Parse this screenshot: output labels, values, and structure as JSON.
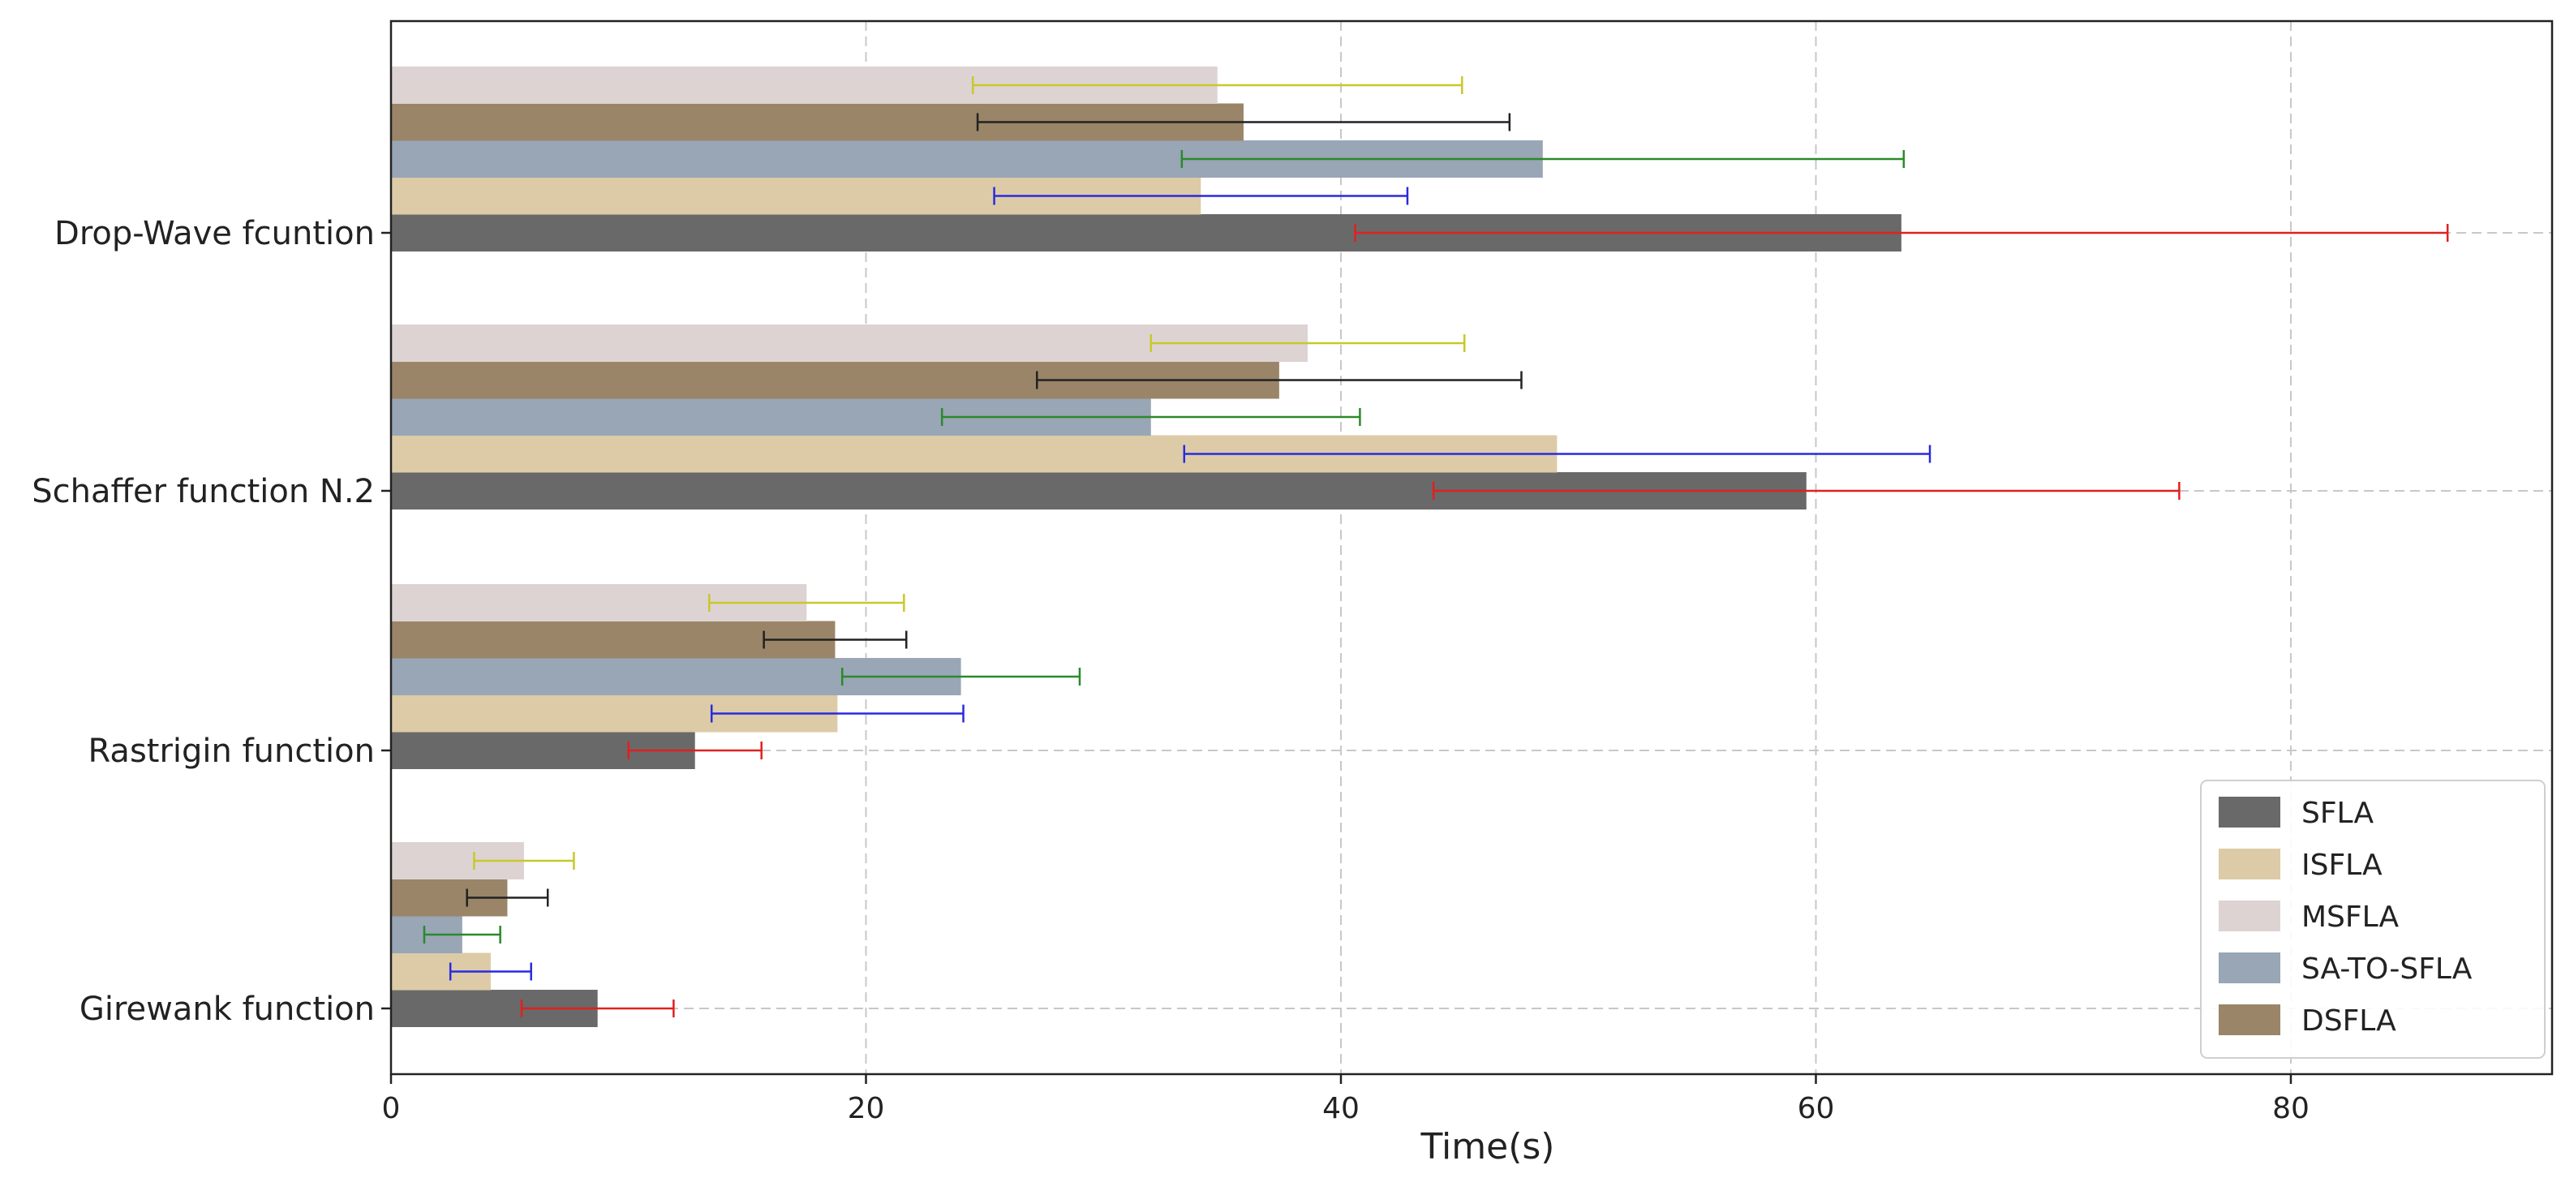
{
  "chart_data": {
    "type": "bar",
    "orientation": "horizontal",
    "title": "",
    "xlabel": "Time(s)",
    "ylabel": "",
    "xlim": [
      0,
      91
    ],
    "xticks": [
      0,
      20,
      40,
      60,
      80
    ],
    "grid": true,
    "legend_position": "bottom-right",
    "categories": [
      "Girewank function",
      "Rastrigin function",
      "Schaffer function N.2",
      "Drop-Wave fcuntion"
    ],
    "series": [
      {
        "name": "SFLA",
        "color": "#696969",
        "values": [
          8.7,
          12.8,
          59.6,
          63.6
        ],
        "errors": [
          3.2,
          2.8,
          15.7,
          23.0
        ],
        "error_color": "#e02020"
      },
      {
        "name": "ISFLA",
        "color": "#dccba6",
        "values": [
          4.2,
          18.8,
          49.1,
          34.1
        ],
        "errors": [
          1.7,
          5.3,
          15.7,
          8.7
        ],
        "error_color": "#2a2ae0"
      },
      {
        "name": "MSFLA",
        "color": "#ddd3d3",
        "values": [
          5.6,
          17.5,
          38.6,
          34.8
        ],
        "errors": [
          2.1,
          4.1,
          6.6,
          10.3
        ],
        "error_color": "#c8c82a"
      },
      {
        "name": "SA-TO-SFLA",
        "color": "#98a6b6",
        "values": [
          3.0,
          24.0,
          32.0,
          48.5
        ],
        "errors": [
          1.6,
          5.0,
          8.8,
          15.2
        ],
        "error_color": "#2a8a2a"
      },
      {
        "name": "DSFLA",
        "color": "#9a8568",
        "values": [
          4.9,
          18.7,
          37.4,
          35.9
        ],
        "errors": [
          1.7,
          3.0,
          10.2,
          11.2
        ],
        "error_color": "#222222"
      }
    ],
    "draw_order": [
      "SFLA",
      "ISFLA",
      "SA-TO-SFLA",
      "DSFLA",
      "MSFLA"
    ]
  }
}
